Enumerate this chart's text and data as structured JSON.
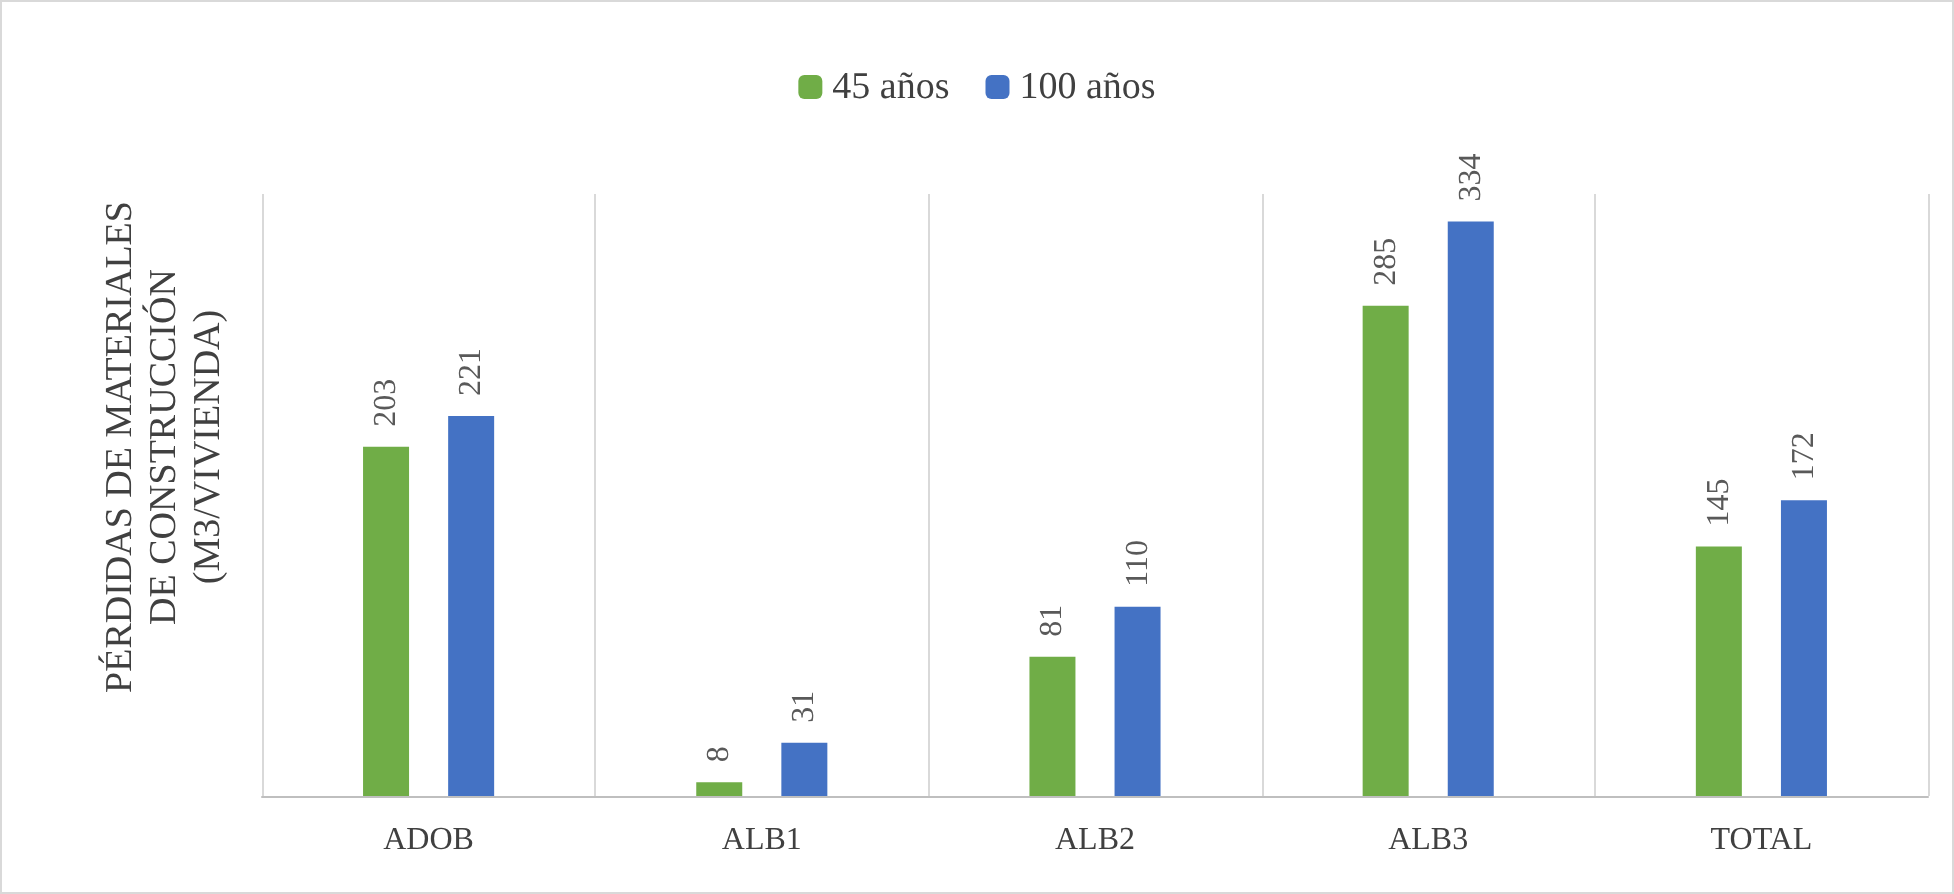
{
  "chart_data": {
    "type": "bar",
    "ylabel": "PÉRDIDAS DE MATERIALES\nDE CONSTRUCCIÓN\n(M3/VIVIENDA)",
    "categories": [
      "ADOB",
      "ALB1",
      "ALB2",
      "ALB3",
      "TOTAL"
    ],
    "series": [
      {
        "name": "45 años",
        "color": "#70ad47",
        "values": [
          203,
          8,
          81,
          285,
          145
        ]
      },
      {
        "name": "100 años",
        "color": "#4472c4",
        "values": [
          221,
          31,
          110,
          334,
          172
        ]
      }
    ],
    "data_labels": true,
    "tick_labels": "x",
    "grid": "x",
    "legend": "top"
  }
}
